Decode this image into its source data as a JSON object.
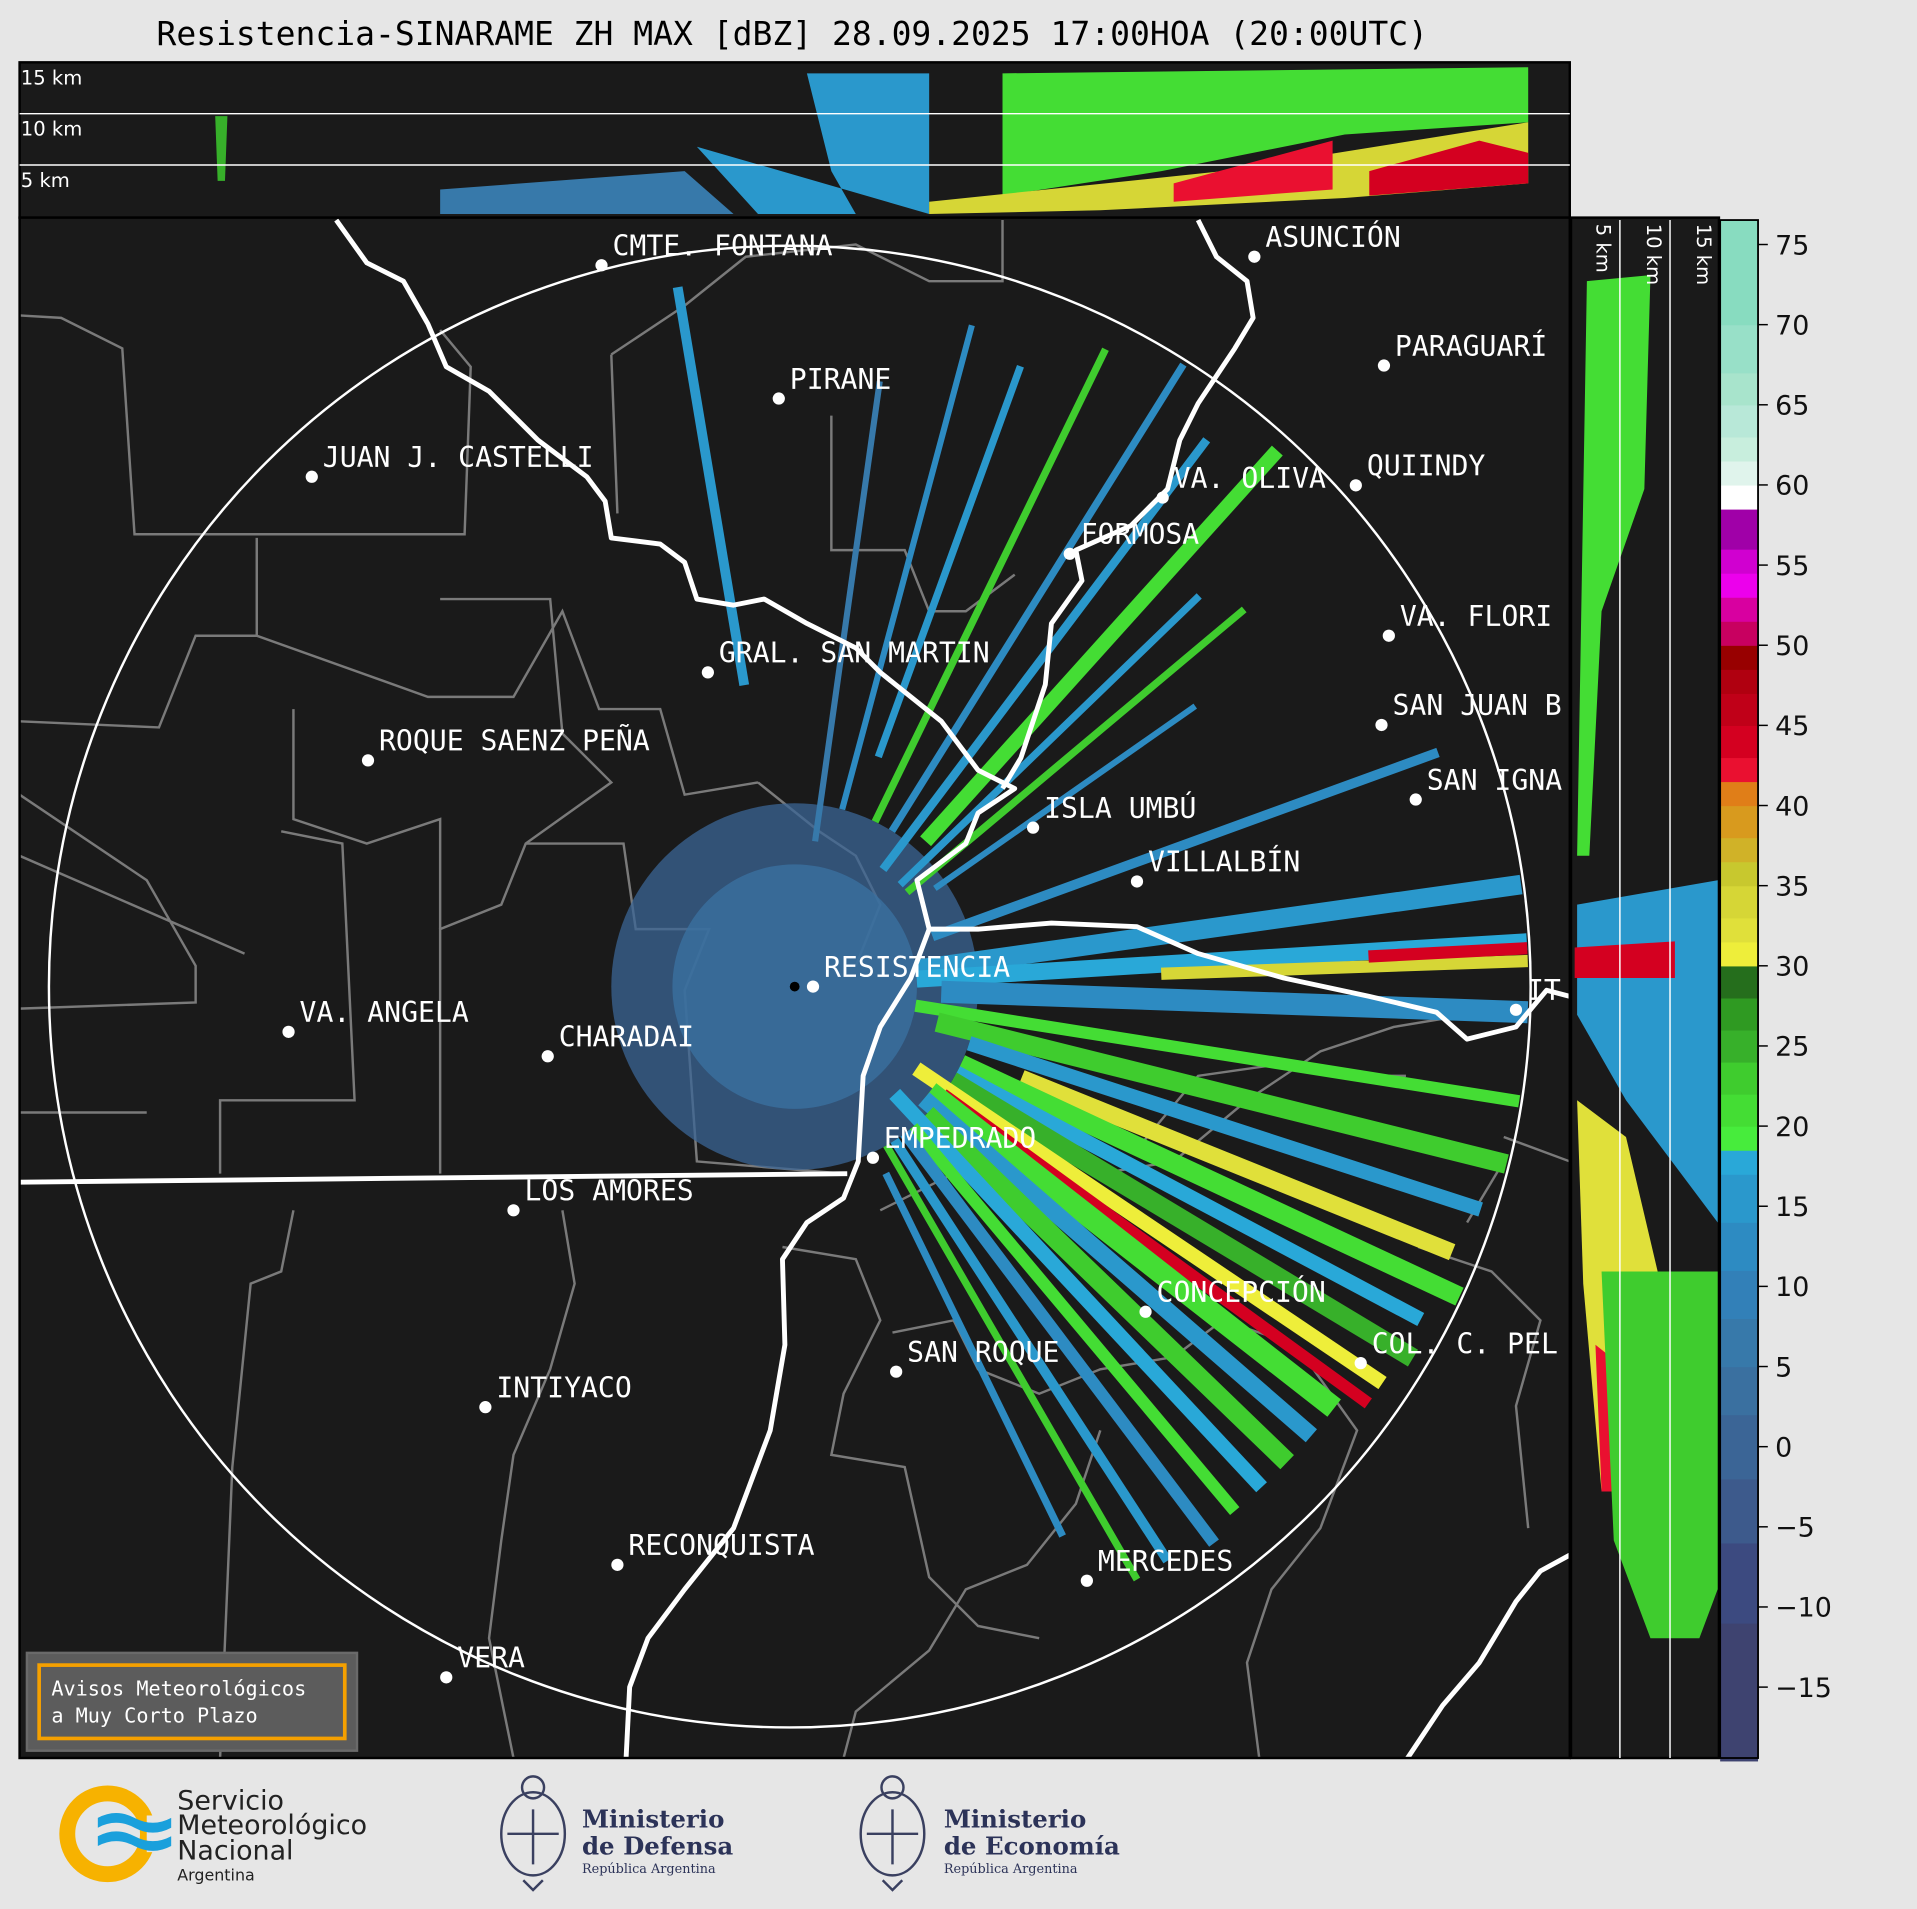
{
  "title": "Resistencia-SINARAME ZH MAX [dBZ] 28.09.2025 17:00HOA (20:00UTC)",
  "top_panel": {
    "labels": [
      "15 km",
      "10 km",
      "5 km"
    ]
  },
  "side_panel": {
    "labels": [
      "5 km",
      "10 km",
      "15 km"
    ]
  },
  "map": {
    "radar_site": "RESISTENCIA",
    "cities": [
      {
        "name": "CMTE. FONTANA"
      },
      {
        "name": "ASUNCIÓN"
      },
      {
        "name": "PARAGUARÍ"
      },
      {
        "name": "PIRANE"
      },
      {
        "name": "JUAN J. CASTELLI"
      },
      {
        "name": "VA. OLIVA"
      },
      {
        "name": "QUIINDY"
      },
      {
        "name": "FORMOSA"
      },
      {
        "name": "VA. FLORI"
      },
      {
        "name": "GRAL. SAN MARTIN"
      },
      {
        "name": "SAN JUAN B"
      },
      {
        "name": "ROQUE SAENZ PEÑA"
      },
      {
        "name": "SAN IGNA"
      },
      {
        "name": "ISLA UMBÚ"
      },
      {
        "name": "VILLALBÍN"
      },
      {
        "name": "RESISTENCIA"
      },
      {
        "name": "VA. ANGELA"
      },
      {
        "name": "CHARADAI"
      },
      {
        "name": "IT"
      },
      {
        "name": "EMPEDRADO"
      },
      {
        "name": "LOS AMORES"
      },
      {
        "name": "CONCEPCIÓN"
      },
      {
        "name": "COL. C. PEL"
      },
      {
        "name": "SAN ROQUE"
      },
      {
        "name": "INTIYACO"
      },
      {
        "name": "RECONQUISTA"
      },
      {
        "name": "MERCEDES"
      },
      {
        "name": "VERA"
      }
    ],
    "warning_box": {
      "line1": "Avisos Meteorológicos",
      "line2": "a Muy Corto Plazo",
      "border_color": "#f5a000"
    }
  },
  "colorbar": {
    "unit": "dBZ",
    "ticks": [
      75,
      70,
      65,
      60,
      55,
      50,
      45,
      40,
      35,
      30,
      25,
      20,
      15,
      10,
      5,
      0,
      -5,
      -10,
      -15
    ],
    "tick_labels": [
      "75",
      "70",
      "65",
      "60",
      "55",
      "50",
      "45",
      "40",
      "35",
      "30",
      "25",
      "20",
      "15",
      "10",
      "5",
      "0",
      "−5",
      "−10",
      "−15"
    ],
    "range": [
      -19.6,
      76.5
    ],
    "bands": [
      [
        -19.6,
        -11,
        "#3e4370"
      ],
      [
        -11,
        -6,
        "#3c4a80"
      ],
      [
        -6,
        -2,
        "#3d5a8c"
      ],
      [
        -2,
        2,
        "#3b6596"
      ],
      [
        2,
        5,
        "#3a70a0"
      ],
      [
        5,
        8,
        "#3779aa"
      ],
      [
        8,
        11,
        "#3280b8"
      ],
      [
        11,
        14,
        "#2d8bc2"
      ],
      [
        14,
        17,
        "#2a98cc"
      ],
      [
        17,
        18.5,
        "#29a8d8"
      ],
      [
        18.5,
        20,
        "#47ec3c"
      ],
      [
        20,
        22,
        "#44dd34"
      ],
      [
        22,
        24,
        "#3fcc2e"
      ],
      [
        24,
        26,
        "#37b02a"
      ],
      [
        26,
        28,
        "#2f9a22"
      ],
      [
        28,
        30,
        "#256e1c"
      ],
      [
        30,
        31.5,
        "#eeee3a"
      ],
      [
        31.5,
        33,
        "#e0e03a"
      ],
      [
        33,
        35,
        "#d6d636"
      ],
      [
        35,
        36.5,
        "#c8c82e"
      ],
      [
        36.5,
        38,
        "#d0b228"
      ],
      [
        38,
        40,
        "#d89a1e"
      ],
      [
        40,
        41.5,
        "#e07e18"
      ],
      [
        41.5,
        43,
        "#ea1030"
      ],
      [
        43,
        45,
        "#d40020"
      ],
      [
        45,
        47,
        "#c00018"
      ],
      [
        47,
        48.5,
        "#b00010"
      ],
      [
        48.5,
        50,
        "#980000"
      ],
      [
        50,
        51.5,
        "#c80060"
      ],
      [
        51.5,
        53,
        "#d800a0"
      ],
      [
        53,
        54.5,
        "#ec00ec"
      ],
      [
        54.5,
        56,
        "#d000d0"
      ],
      [
        56,
        58.5,
        "#a000a8"
      ],
      [
        58.5,
        60,
        "#ffffff"
      ],
      [
        60,
        61.5,
        "#e0f4ec"
      ],
      [
        61.5,
        63,
        "#c8eedd"
      ],
      [
        63,
        65,
        "#b8e8d8"
      ],
      [
        65,
        67,
        "#a8e4cc"
      ],
      [
        67,
        70,
        "#98e0c8"
      ],
      [
        70,
        76.5,
        "#88dcc0"
      ]
    ]
  },
  "logos": {
    "smn": {
      "line1": "Servicio",
      "line2": "Meteorológico",
      "line3": "Nacional",
      "line4": "Argentina"
    },
    "defensa": {
      "line1": "Ministerio",
      "line2": "de Defensa",
      "line3": "República Argentina"
    },
    "economia": {
      "line1": "Ministerio",
      "line2": "de Economía",
      "line3": "República Argentina"
    }
  },
  "colors": {
    "background": "#e6e6e6",
    "map_bg": "#1a1a1a",
    "border_gray": "#7a7a7a",
    "river": "#ffffff"
  }
}
